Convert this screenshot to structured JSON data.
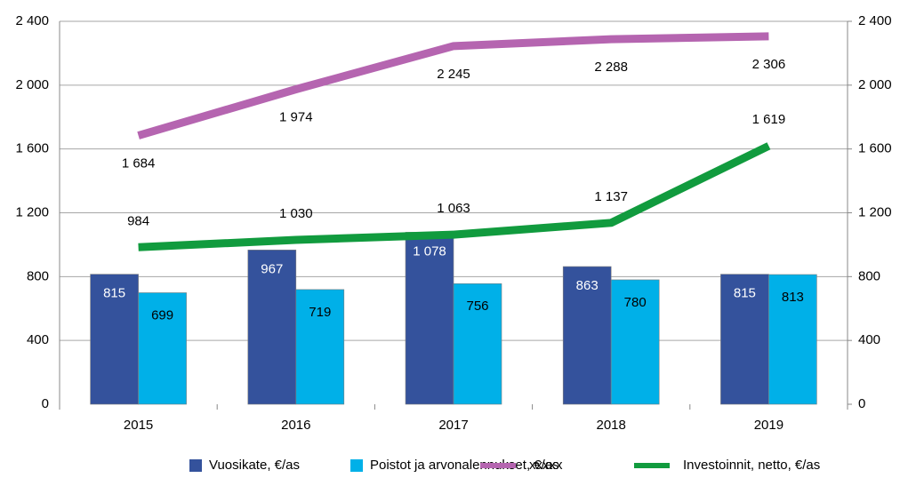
{
  "chart_data": {
    "type": "bar",
    "categories": [
      "2015",
      "2016",
      "2017",
      "2018",
      "2019"
    ],
    "series": [
      {
        "name": "Vuosikate, €/as",
        "type": "bar",
        "color": "#34529c",
        "values": [
          815,
          967,
          1078,
          863,
          815
        ],
        "value_labels": [
          "815",
          "967",
          "1 078",
          "863",
          "815"
        ]
      },
      {
        "name": "Poistot ja arvonalennukset, €/as",
        "type": "bar",
        "color": "#00b0e8",
        "values": [
          699,
          719,
          756,
          780,
          813
        ],
        "value_labels": [
          "699",
          "719",
          "756",
          "780",
          "813"
        ]
      },
      {
        "name": "xxxxx",
        "type": "line",
        "axis": "y2",
        "color": "#b565b0",
        "values": [
          1684,
          1974,
          2245,
          2288,
          2306
        ],
        "value_labels": [
          "1 684",
          "1 974",
          "2 245",
          "2 288",
          "2 306"
        ]
      },
      {
        "name": "Investoinnit, netto, €/as",
        "type": "line",
        "axis": "y2",
        "color": "#119b3e",
        "values": [
          984,
          1030,
          1063,
          1137,
          1619
        ],
        "value_labels": [
          "984",
          "1 030",
          "1 063",
          "1 137",
          "1 619"
        ]
      }
    ],
    "ylim": [
      0,
      2400
    ],
    "yticks": [
      0,
      400,
      800,
      {
        "value": 1200,
        "label": "1 200"
      },
      {
        "value": 1600,
        "label": "1 600"
      },
      {
        "value": 2000,
        "label": "2 000"
      },
      {
        "value": 2400,
        "label": "2 400"
      }
    ],
    "y2lim": [
      0,
      2400
    ],
    "y2ticks": [
      0,
      400,
      800,
      {
        "value": 1200,
        "label": "1 200"
      },
      {
        "value": 1600,
        "label": "1 600"
      },
      {
        "value": 2000,
        "label": "2 000"
      },
      {
        "value": 2400,
        "label": "2 400"
      }
    ],
    "grid": true,
    "legend": "bottom"
  }
}
